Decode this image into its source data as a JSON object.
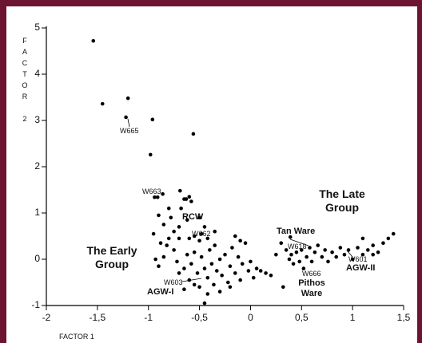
{
  "chart_data": {
    "type": "scatter",
    "xlabel": "FACTOR 1",
    "ylabel": "FACTOR 2",
    "xlim": [
      -2,
      1.5
    ],
    "ylim": [
      -1,
      5
    ],
    "xticks": [
      -2,
      {
        "value": -1.5,
        "label": "-1,5"
      },
      -1,
      {
        "value": -0.5,
        "label": "-0,5"
      },
      0,
      {
        "value": 0.5,
        "label": "0,5"
      },
      1,
      {
        "value": 1.5,
        "label": "1,5"
      }
    ],
    "yticks": [
      -1,
      0,
      1,
      2,
      3,
      4,
      5
    ],
    "series": [
      {
        "color": "#000000",
        "x": [
          -1.54,
          -1.45,
          -1.2,
          -1.22,
          -0.96,
          -0.56,
          -0.98,
          -0.69,
          -0.94,
          -0.91,
          -0.86,
          -0.63,
          -0.95,
          -0.9,
          -0.85,
          -0.8,
          -0.78,
          -0.75,
          -0.7,
          -0.68,
          -0.65,
          -0.6,
          -0.58,
          -0.62,
          -0.55,
          -0.5,
          -0.88,
          -0.82,
          -0.9,
          -0.85,
          -0.75,
          -0.72,
          -0.7,
          -0.65,
          -0.62,
          -0.6,
          -0.58,
          -0.55,
          -0.52,
          -0.5,
          -0.48,
          -0.45,
          -0.42,
          -0.4,
          -0.38,
          -0.36,
          -0.35,
          -0.33,
          -0.3,
          -0.28,
          -0.25,
          -0.22,
          -0.2,
          -0.18,
          -0.15,
          -0.12,
          -0.1,
          -0.08,
          -0.05,
          -0.02,
          0.0,
          0.03,
          0.06,
          -0.45,
          -0.42,
          -0.55,
          -0.65,
          -0.6,
          -0.48,
          -0.42,
          -0.35,
          -0.15,
          -0.1,
          -0.3,
          -0.2,
          -0.5,
          -0.45,
          -0.7,
          -0.8,
          -0.93,
          0.1,
          0.15,
          0.2,
          0.25,
          0.3,
          0.32,
          0.35,
          0.38,
          0.4,
          0.42,
          0.45,
          0.48,
          0.5,
          0.52,
          0.55,
          0.58,
          0.6,
          0.63,
          0.66,
          0.7,
          0.73,
          0.76,
          0.8,
          0.84,
          0.88,
          0.92,
          0.96,
          1.0,
          1.05,
          1.1,
          1.15,
          1.2,
          1.25,
          1.3,
          1.35,
          1.4,
          1.2,
          1.1,
          0.39
        ],
        "y": [
          4.72,
          3.36,
          3.48,
          3.07,
          3.02,
          2.71,
          2.26,
          1.48,
          1.34,
          1.34,
          1.41,
          1.3,
          0.55,
          0.95,
          0.75,
          1.1,
          0.9,
          0.6,
          0.7,
          1.1,
          1.3,
          1.35,
          1.25,
          0.85,
          0.5,
          0.4,
          0.35,
          0.3,
          -0.15,
          0.05,
          0.2,
          -0.05,
          -0.3,
          -0.2,
          0.1,
          -0.45,
          -0.1,
          0.15,
          -0.3,
          -0.6,
          0.05,
          -0.2,
          -0.4,
          0.2,
          -0.1,
          -0.55,
          0.3,
          -0.25,
          0.0,
          -0.35,
          0.1,
          -0.5,
          -0.15,
          0.25,
          -0.3,
          0.05,
          -0.45,
          -0.1,
          0.35,
          -0.25,
          -0.05,
          -0.4,
          -0.2,
          -0.95,
          -0.75,
          -0.55,
          -0.65,
          0.45,
          0.55,
          0.45,
          0.6,
          0.5,
          0.4,
          -0.7,
          -0.6,
          0.9,
          0.7,
          0.45,
          0.45,
          0.0,
          -0.25,
          -0.3,
          -0.35,
          0.1,
          0.35,
          -0.6,
          0.2,
          0.0,
          0.1,
          -0.1,
          0.15,
          -0.05,
          0.2,
          -0.2,
          0.05,
          0.25,
          -0.05,
          0.15,
          0.3,
          0.05,
          0.2,
          -0.05,
          0.15,
          0.05,
          0.25,
          0.1,
          0.2,
          0.0,
          0.25,
          0.1,
          0.2,
          0.3,
          0.15,
          0.35,
          0.45,
          0.55,
          0.1,
          0.45,
          0.48
        ]
      }
    ],
    "annotations": [
      "W665",
      "W663",
      "W662",
      "W603",
      "W618",
      "W666",
      "W601",
      "RCW",
      "Tan Ware",
      "The Late Group",
      "The Early Group",
      "AGW-I",
      "AGW-II",
      "Pithos Ware"
    ]
  }
}
